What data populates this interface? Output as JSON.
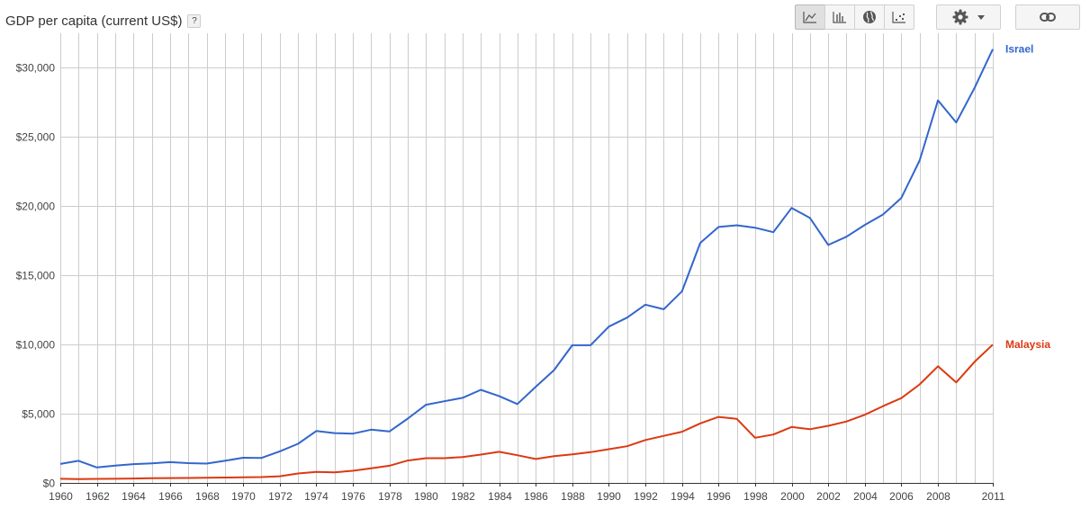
{
  "header": {
    "title": "GDP per capita (current US$)",
    "help_label": "?"
  },
  "toolbar": {
    "buttons": [
      {
        "icon": "line-chart-icon",
        "active": true
      },
      {
        "icon": "bar-chart-icon",
        "active": false
      },
      {
        "icon": "globe-icon",
        "active": false
      },
      {
        "icon": "scatter-chart-icon",
        "active": false
      }
    ],
    "settings_icon": "gear-icon",
    "settings_dropdown_icon": "caret-down-icon",
    "link_icon": "link-icon"
  },
  "chart_data": {
    "type": "line",
    "title": "GDP per capita (current US$)",
    "xlabel": "",
    "ylabel": "",
    "xlim": [
      1960,
      2011
    ],
    "ylim": [
      0,
      32500
    ],
    "x_ticks": [
      "1960",
      "1962",
      "1964",
      "1966",
      "1968",
      "1970",
      "1972",
      "1974",
      "1976",
      "1978",
      "1980",
      "1982",
      "1984",
      "1986",
      "1988",
      "1990",
      "1992",
      "1994",
      "1996",
      "1998",
      "2000",
      "2002",
      "2004",
      "2006",
      "2008",
      "2011"
    ],
    "y_ticks": [
      "$0",
      "$5,000",
      "$10,000",
      "$15,000",
      "$20,000",
      "$25,000",
      "$30,000"
    ],
    "grid": true,
    "legend": "right, at line ends",
    "x": [
      1960,
      1961,
      1962,
      1963,
      1964,
      1965,
      1966,
      1967,
      1968,
      1969,
      1970,
      1971,
      1972,
      1973,
      1974,
      1975,
      1976,
      1977,
      1978,
      1979,
      1980,
      1981,
      1982,
      1983,
      1984,
      1985,
      1986,
      1987,
      1988,
      1989,
      1990,
      1991,
      1992,
      1993,
      1994,
      1995,
      1996,
      1997,
      1998,
      1999,
      2000,
      2001,
      2002,
      2003,
      2004,
      2005,
      2006,
      2007,
      2008,
      2009,
      2010,
      2011
    ],
    "series": [
      {
        "name": "Israel",
        "color": "#3366cc",
        "values": [
          1370,
          1600,
          1120,
          1250,
          1360,
          1420,
          1500,
          1430,
          1400,
          1600,
          1820,
          1810,
          2280,
          2830,
          3750,
          3600,
          3560,
          3850,
          3720,
          4650,
          5650,
          5900,
          6150,
          6730,
          6280,
          5700,
          6950,
          8150,
          9950,
          9950,
          11300,
          11950,
          12880,
          12550,
          13850,
          17350,
          18500,
          18620,
          18450,
          18120,
          19880,
          19150,
          17200,
          17800,
          18650,
          19400,
          20600,
          23300,
          27650,
          26050,
          28550,
          31350
        ]
      },
      {
        "name": "Malaysia",
        "color": "#dc3912",
        "values": [
          300,
          280,
          290,
          300,
          320,
          340,
          350,
          360,
          370,
          390,
          400,
          420,
          480,
          680,
          800,
          770,
          880,
          1050,
          1240,
          1620,
          1790,
          1790,
          1870,
          2050,
          2250,
          2000,
          1730,
          1930,
          2060,
          2220,
          2440,
          2650,
          3100,
          3400,
          3700,
          4300,
          4770,
          4630,
          3260,
          3500,
          4040,
          3880,
          4130,
          4440,
          4930,
          5550,
          6130,
          7120,
          8430,
          7270,
          8750,
          10000
        ]
      }
    ]
  }
}
